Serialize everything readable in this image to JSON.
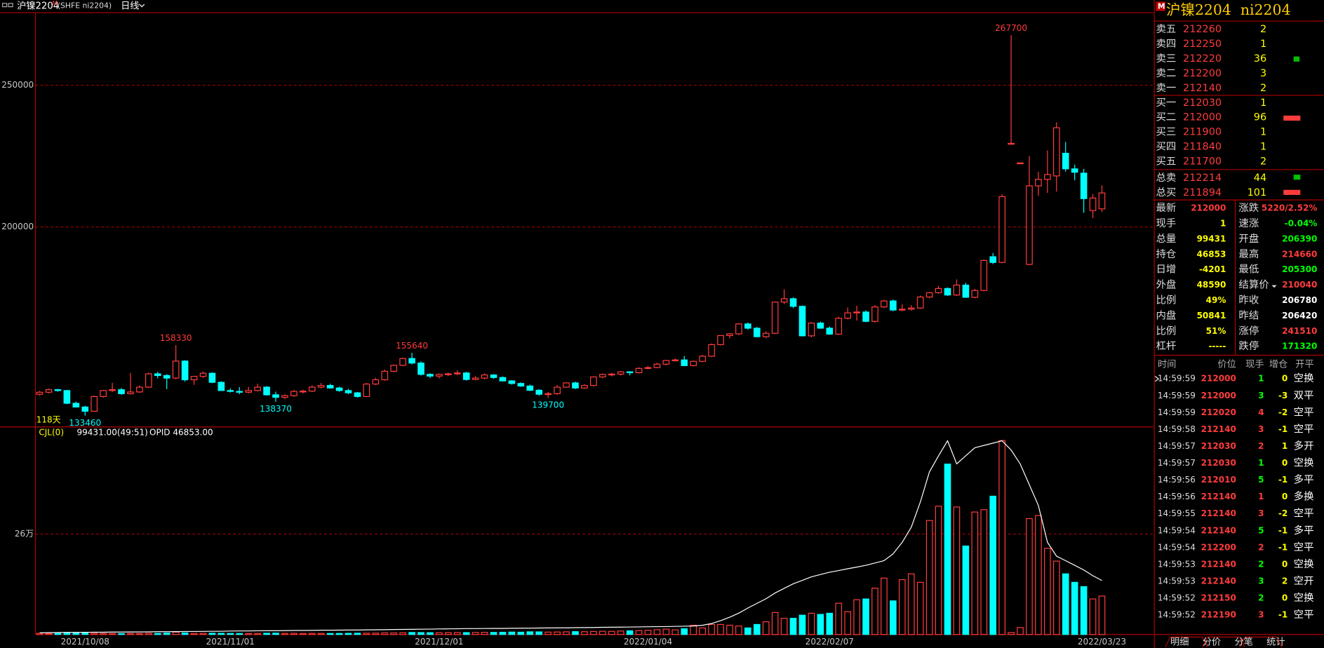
{
  "topbar": {
    "name": "沪镍2204",
    "flag": "M",
    "code": "(SHFE ni2204)",
    "period": "日线"
  },
  "chart_data": {
    "type": "candlestick",
    "bar_count_label": "118天",
    "categories": [
      null,
      null,
      null,
      null,
      null,
      "2021/10/08",
      null,
      null,
      null,
      null,
      null,
      null,
      null,
      null,
      null,
      null,
      null,
      null,
      null,
      null,
      null,
      "2021/11/01",
      null,
      null,
      null,
      null,
      null,
      null,
      null,
      null,
      null,
      null,
      null,
      null,
      null,
      null,
      null,
      null,
      null,
      null,
      null,
      null,
      null,
      null,
      "2021/12/01",
      null,
      null,
      null,
      null,
      null,
      null,
      null,
      null,
      null,
      null,
      null,
      null,
      null,
      null,
      null,
      null,
      null,
      null,
      null,
      null,
      null,
      null,
      "2022/01/04",
      null,
      null,
      null,
      null,
      null,
      null,
      null,
      null,
      null,
      null,
      null,
      null,
      null,
      null,
      null,
      null,
      null,
      null,
      null,
      "2022/02/07",
      null,
      null,
      null,
      null,
      null,
      null,
      null,
      null,
      null,
      null,
      null,
      null,
      null,
      null,
      null,
      null,
      null,
      null,
      null,
      null,
      null,
      null,
      null,
      null,
      null,
      null,
      null,
      null,
      null,
      "2022/03/23"
    ],
    "candles": [
      [
        141000,
        142200,
        140500,
        141700
      ],
      [
        141700,
        143000,
        141300,
        142600
      ],
      [
        142600,
        142900,
        141900,
        142300
      ],
      [
        142300,
        142500,
        137500,
        137800
      ],
      [
        137800,
        138400,
        136300,
        136500
      ],
      [
        136500,
        136900,
        133460,
        135000
      ],
      [
        135000,
        140500,
        134800,
        140200
      ],
      [
        140200,
        142500,
        139800,
        142300
      ],
      [
        142300,
        145000,
        141800,
        142600
      ],
      [
        142600,
        143200,
        140800,
        141200
      ],
      [
        141200,
        148500,
        140900,
        141800
      ],
      [
        141800,
        144100,
        141500,
        143500
      ],
      [
        143500,
        148600,
        143200,
        148200
      ],
      [
        148200,
        148900,
        146600,
        147600
      ],
      [
        147600,
        148100,
        142800,
        146700
      ],
      [
        146700,
        158330,
        146300,
        152700
      ],
      [
        152700,
        153000,
        145500,
        146100
      ],
      [
        146100,
        147500,
        144300,
        147300
      ],
      [
        147300,
        149000,
        146800,
        148400
      ],
      [
        148400,
        148700,
        144900,
        145200
      ],
      [
        145200,
        145600,
        142200,
        142300
      ],
      [
        142300,
        143100,
        141600,
        142000
      ],
      [
        142000,
        143500,
        141000,
        141700
      ],
      [
        141700,
        143600,
        141300,
        142300
      ],
      [
        142300,
        144700,
        142000,
        143500
      ],
      [
        143500,
        143900,
        140500,
        140800
      ],
      [
        140800,
        141900,
        138370,
        139900
      ],
      [
        139900,
        141000,
        139300,
        140500
      ],
      [
        140500,
        142500,
        140100,
        142000
      ],
      [
        142000,
        142600,
        141300,
        142100
      ],
      [
        142100,
        144200,
        141800,
        143500
      ],
      [
        143500,
        145000,
        143000,
        144100
      ],
      [
        144100,
        144700,
        143000,
        143200
      ],
      [
        143200,
        143700,
        141900,
        142300
      ],
      [
        142300,
        142900,
        141000,
        141500
      ],
      [
        141500,
        141800,
        139800,
        140200
      ],
      [
        140200,
        145000,
        140000,
        144600
      ],
      [
        144600,
        146800,
        144300,
        146100
      ],
      [
        146100,
        149700,
        145800,
        149100
      ],
      [
        149100,
        151500,
        148700,
        151200
      ],
      [
        151200,
        153900,
        150900,
        153600
      ],
      [
        153600,
        155640,
        151500,
        152000
      ],
      [
        152000,
        152600,
        147600,
        148000
      ],
      [
        148000,
        148400,
        146700,
        147400
      ],
      [
        147400,
        148300,
        146600,
        148000
      ],
      [
        148000,
        148600,
        147400,
        148200
      ],
      [
        148200,
        149500,
        147700,
        148500
      ],
      [
        148500,
        148900,
        145800,
        146200
      ],
      [
        146200,
        147400,
        145900,
        146700
      ],
      [
        146700,
        148300,
        146200,
        147800
      ],
      [
        147800,
        148100,
        146400,
        146900
      ],
      [
        146900,
        147300,
        145500,
        145700
      ],
      [
        145700,
        146000,
        144400,
        144800
      ],
      [
        144800,
        145200,
        143600,
        143900
      ],
      [
        143900,
        144400,
        142100,
        142400
      ],
      [
        142400,
        142800,
        140500,
        141000
      ],
      [
        141000,
        141800,
        139700,
        141200
      ],
      [
        141200,
        144200,
        140700,
        143500
      ],
      [
        143500,
        145200,
        143300,
        145000
      ],
      [
        145000,
        145400,
        142800,
        143200
      ],
      [
        143200,
        144500,
        142900,
        144100
      ],
      [
        144100,
        147300,
        143800,
        147100
      ],
      [
        147100,
        148300,
        146700,
        148000
      ],
      [
        148000,
        148500,
        147300,
        148100
      ],
      [
        148100,
        149200,
        147600,
        148900
      ],
      [
        148900,
        149100,
        147700,
        148600
      ],
      [
        148600,
        150500,
        148300,
        150100
      ],
      [
        150100,
        151000,
        149800,
        150400
      ],
      [
        150400,
        152100,
        150200,
        151600
      ],
      [
        151600,
        153100,
        151200,
        152900
      ],
      [
        152900,
        153600,
        152500,
        153100
      ],
      [
        153100,
        154500,
        150900,
        151100
      ],
      [
        151100,
        152900,
        150800,
        152600
      ],
      [
        152600,
        154900,
        152300,
        154400
      ],
      [
        154400,
        158900,
        154100,
        158500
      ],
      [
        158500,
        161800,
        158200,
        161700
      ],
      [
        161700,
        162600,
        160700,
        162300
      ],
      [
        162300,
        166100,
        161900,
        165800
      ],
      [
        165800,
        166300,
        163800,
        164300
      ],
      [
        164300,
        164700,
        161100,
        161300
      ],
      [
        161300,
        163200,
        160800,
        162500
      ],
      [
        162500,
        173700,
        162200,
        173500
      ],
      [
        173500,
        178000,
        172800,
        174700
      ],
      [
        174700,
        175200,
        171400,
        172000
      ],
      [
        172000,
        172300,
        161400,
        161600
      ],
      [
        161600,
        166400,
        161100,
        166100
      ],
      [
        166100,
        166600,
        164100,
        164300
      ],
      [
        164300,
        164900,
        162000,
        162200
      ],
      [
        162200,
        168300,
        161900,
        167800
      ],
      [
        167800,
        171600,
        167400,
        169700
      ],
      [
        169700,
        172200,
        167000,
        170000
      ],
      [
        170000,
        170600,
        166400,
        166700
      ],
      [
        166700,
        172400,
        166300,
        171800
      ],
      [
        171800,
        174300,
        171400,
        173900
      ],
      [
        173900,
        174400,
        170300,
        170700
      ],
      [
        170700,
        172700,
        170300,
        171000
      ],
      [
        171000,
        172400,
        170500,
        171400
      ],
      [
        171400,
        175800,
        171100,
        175300
      ],
      [
        175300,
        177100,
        174900,
        176800
      ],
      [
        176800,
        179200,
        176400,
        178300
      ],
      [
        178300,
        178700,
        175700,
        176000
      ],
      [
        176000,
        181500,
        175700,
        179500
      ],
      [
        179500,
        180300,
        175000,
        175200
      ],
      [
        175200,
        178200,
        174800,
        177600
      ],
      [
        177600,
        188500,
        177300,
        188200
      ],
      [
        189500,
        190800,
        186900,
        187500
      ],
      [
        187500,
        211500,
        187200,
        210700
      ],
      [
        229500,
        267700,
        229500,
        229500
      ],
      [
        222600,
        222600,
        222600,
        222600
      ],
      [
        186800,
        225000,
        186500,
        214500
      ],
      [
        214500,
        219500,
        211000,
        216800
      ],
      [
        216800,
        227000,
        212000,
        218500
      ],
      [
        218000,
        236900,
        212500,
        235000
      ],
      [
        226000,
        230000,
        219500,
        220500
      ],
      [
        220500,
        222000,
        216500,
        219300
      ],
      [
        219000,
        220500,
        205000,
        210000
      ],
      [
        205800,
        211600,
        203100,
        210200
      ],
      [
        206390,
        214660,
        205300,
        212000
      ]
    ],
    "ylim": [
      129760,
      275600
    ],
    "yticks": [
      200000,
      250000
    ],
    "annotations": [
      158330,
      155640,
      267700,
      133460,
      138370,
      139700
    ],
    "volume": [
      3000,
      2500,
      2800,
      4000,
      3500,
      5000,
      3000,
      2600,
      2400,
      2200,
      2500,
      2300,
      3100,
      2700,
      3600,
      6000,
      4200,
      2800,
      2900,
      3300,
      3000,
      2700,
      2600,
      2500,
      2800,
      3200,
      3500,
      2900,
      3100,
      2700,
      2900,
      2800,
      2600,
      2700,
      3000,
      3300,
      3400,
      3600,
      4200,
      4000,
      4500,
      5200,
      5000,
      4700,
      4600,
      4800,
      5100,
      4900,
      5300,
      5600,
      5400,
      5800,
      6300,
      6000,
      7000,
      6800,
      6200,
      6500,
      6900,
      7400,
      7200,
      7800,
      8300,
      8100,
      9000,
      9600,
      10200,
      11000,
      12500,
      13800,
      12000,
      15000,
      24000,
      17000,
      26000,
      26000,
      24000,
      22000,
      17000,
      26000,
      33000,
      57000,
      42000,
      42000,
      50000,
      55000,
      52000,
      55000,
      81000,
      59000,
      90000,
      92000,
      120000,
      146000,
      87000,
      142000,
      157000,
      135000,
      295000,
      332000,
      441000,
      330000,
      229000,
      317000,
      323000,
      358000,
      502000,
      5000,
      18000,
      300000,
      308000,
      223000,
      190000,
      157000,
      135000,
      124000,
      92000,
      99431
    ],
    "vol_ylim": [
      0,
      535000
    ],
    "vol_yticks": [
      {
        "value": 260000,
        "label": "26万"
      }
    ],
    "open_interest": [
      1500,
      1600,
      1700,
      1800,
      1800,
      1900,
      2000,
      2000,
      2100,
      2100,
      2200,
      2200,
      2300,
      2400,
      2400,
      2500,
      2600,
      2600,
      2700,
      2800,
      2800,
      3000,
      3100,
      3100,
      3200,
      3300,
      3300,
      3400,
      3500,
      3500,
      3600,
      3700,
      3700,
      3800,
      3900,
      3900,
      4000,
      4100,
      4200,
      4300,
      4400,
      4500,
      4600,
      4700,
      4800,
      4900,
      5000,
      5100,
      5100,
      5200,
      5300,
      5300,
      5400,
      5500,
      5500,
      5600,
      5700,
      5800,
      5800,
      5900,
      6000,
      6100,
      6200,
      6300,
      6400,
      6500,
      6600,
      6700,
      6800,
      6900,
      7000,
      7200,
      7400,
      8000,
      9500,
      12000,
      15000,
      18500,
      23000,
      27000,
      31000,
      36000,
      40000,
      44000,
      47000,
      50000,
      52000,
      54000,
      55500,
      57000,
      58500,
      60000,
      62000,
      64000,
      70000,
      80000,
      93000,
      115000,
      141000,
      155000,
      168000,
      148000,
      155000,
      162000,
      164000,
      166000,
      168000,
      160000,
      148000,
      130000,
      112000,
      80000,
      68000,
      64000,
      60000,
      56000,
      51000,
      46853
    ],
    "oi_ylim": [
      0,
      179300
    ],
    "up_color": "#ff3c3c",
    "down_color": "#00ffff",
    "oi_color": "#ffffff",
    "indicator": {
      "name": "CJL(0)",
      "values": "99431.00(49:51)",
      "opid": "OPID 46853.00"
    }
  },
  "panel": {
    "flag": "M",
    "title": "沪镍2204  ni2204",
    "asks": [
      [
        "卖五",
        212260,
        2
      ],
      [
        "卖四",
        212250,
        1
      ],
      [
        "卖三",
        212220,
        36
      ],
      [
        "卖二",
        212200,
        3
      ],
      [
        "卖一",
        212140,
        2
      ]
    ],
    "bids": [
      [
        "买一",
        212030,
        1
      ],
      [
        "买二",
        212000,
        96
      ],
      [
        "买三",
        211900,
        1
      ],
      [
        "买四",
        211840,
        1
      ],
      [
        "买五",
        211700,
        2
      ]
    ],
    "totals": [
      [
        "总卖",
        212214,
        44
      ],
      [
        "总买",
        211894,
        101
      ]
    ],
    "stats": [
      [
        [
          "最新",
          "212000",
          "#ff3c3c"
        ],
        [
          "涨跌",
          "5220/2.52%",
          "#ff3c3c"
        ]
      ],
      [
        [
          "现手",
          "1",
          "#ffff00"
        ],
        [
          "速涨",
          "-0.04%",
          "#00ff00"
        ]
      ],
      [
        [
          "总量",
          "99431",
          "#ffff00"
        ],
        [
          "开盘",
          "206390",
          "#00ff00"
        ]
      ],
      [
        [
          "持仓",
          "46853",
          "#ffff00"
        ],
        [
          "最高",
          "214660",
          "#ff3c3c"
        ]
      ],
      [
        [
          "日增",
          "-4201",
          "#ffff00"
        ],
        [
          "最低",
          "205300",
          "#00ff00"
        ]
      ],
      [
        [
          "外盘",
          "48590",
          "#ffff00"
        ],
        [
          "结算价",
          "210040",
          "#ff3c3c"
        ]
      ],
      [
        [
          "比例",
          "49%",
          "#ffff00"
        ],
        [
          "昨收",
          "206780",
          "#ffffff"
        ]
      ],
      [
        [
          "内盘",
          "50841",
          "#ffff00"
        ],
        [
          "昨结",
          "206420",
          "#ffffff"
        ]
      ],
      [
        [
          "比例",
          "51%",
          "#ffff00"
        ],
        [
          "涨停",
          "241510",
          "#ff3c3c"
        ]
      ],
      [
        [
          "杠杆",
          "-----",
          "#ffff00"
        ],
        [
          "跌停",
          "171320",
          "#00ff00"
        ]
      ]
    ],
    "trades_header": [
      "时间",
      "价位",
      "现手",
      "增仓",
      "开平"
    ],
    "trades": [
      [
        "14:59:59",
        212000,
        1,
        0,
        "空换",
        "#00ff00"
      ],
      [
        "14:59:59",
        212000,
        3,
        -3,
        "双平",
        "#00ff00"
      ],
      [
        "14:59:59",
        212020,
        4,
        -2,
        "空平",
        "#ff3c3c"
      ],
      [
        "14:59:58",
        212140,
        3,
        -1,
        "空平",
        "#ff3c3c"
      ],
      [
        "14:59:57",
        212030,
        2,
        1,
        "多开",
        "#ff3c3c"
      ],
      [
        "14:59:57",
        212030,
        1,
        0,
        "空换",
        "#00ff00"
      ],
      [
        "14:59:56",
        212010,
        5,
        -1,
        "多平",
        "#00ff00"
      ],
      [
        "14:59:56",
        212140,
        1,
        0,
        "多换",
        "#ff3c3c"
      ],
      [
        "14:59:55",
        212140,
        3,
        -2,
        "空平",
        "#ff3c3c"
      ],
      [
        "14:59:54",
        212140,
        5,
        -1,
        "多平",
        "#00ff00"
      ],
      [
        "14:59:54",
        212200,
        2,
        -1,
        "空平",
        "#ff3c3c"
      ],
      [
        "14:59:53",
        212140,
        2,
        0,
        "空换",
        "#00ff00"
      ],
      [
        "14:59:53",
        212140,
        3,
        2,
        "空开",
        "#00ff00"
      ],
      [
        "14:59:52",
        212150,
        2,
        0,
        "空换",
        "#00ff00"
      ],
      [
        "14:59:52",
        212190,
        3,
        -1,
        "空平",
        "#ff3c3c"
      ]
    ],
    "tabs": [
      "明细",
      "分价",
      "分笔",
      "统计"
    ]
  }
}
